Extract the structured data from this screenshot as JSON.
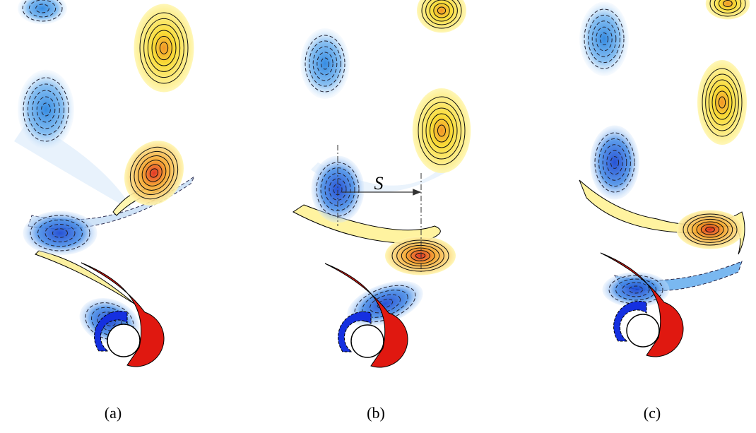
{
  "panels": [
    {
      "label": "(a)"
    },
    {
      "label": "(b)",
      "annotation": "S"
    },
    {
      "label": "(c)"
    }
  ]
}
